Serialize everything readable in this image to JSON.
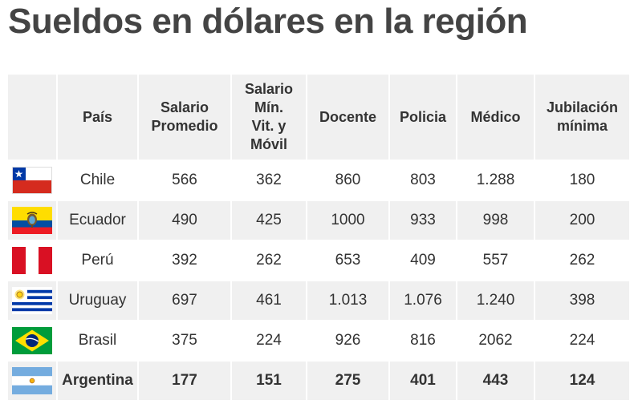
{
  "title": "Sueldos en dólares en la región",
  "table": {
    "headers": [
      "",
      "País",
      [
        "Salario",
        "Promedio"
      ],
      [
        "Salario",
        "Mín.",
        "Vit. y",
        "Móvil"
      ],
      "Docente",
      "Policia",
      "Médico",
      [
        "Jubilación",
        "mínima"
      ]
    ],
    "rows": [
      {
        "flag": "chile-flag-icon",
        "country": "Chile",
        "values": [
          "566",
          "362",
          "860",
          "803",
          "1.288",
          "180"
        ],
        "bold": false
      },
      {
        "flag": "ecuador-flag-icon",
        "country": "Ecuador",
        "values": [
          "490",
          "425",
          "1000",
          "933",
          "998",
          "200"
        ],
        "bold": false
      },
      {
        "flag": "peru-flag-icon",
        "country": "Perú",
        "values": [
          "392",
          "262",
          "653",
          "409",
          "557",
          "262"
        ],
        "bold": false
      },
      {
        "flag": "uruguay-flag-icon",
        "country": "Uruguay",
        "values": [
          "697",
          "461",
          "1.013",
          "1.076",
          "1.240",
          "398"
        ],
        "bold": false
      },
      {
        "flag": "brazil-flag-icon",
        "country": "Brasil",
        "values": [
          "375",
          "224",
          "926",
          "816",
          "2062",
          "224"
        ],
        "bold": false
      },
      {
        "flag": "argentina-flag-icon",
        "country": "Argentina",
        "values": [
          "177",
          "151",
          "275",
          "401",
          "443",
          "124"
        ],
        "bold": true
      }
    ]
  }
}
